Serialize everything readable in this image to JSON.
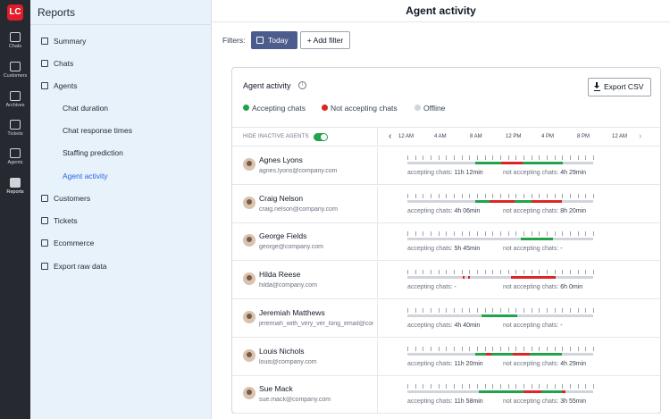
{
  "rail": {
    "logo": "LC",
    "items": [
      {
        "label": "Chats",
        "icon": "chat-icon"
      },
      {
        "label": "Customers",
        "icon": "customers-icon"
      },
      {
        "label": "Archives",
        "icon": "archives-icon"
      },
      {
        "label": "Tickets",
        "icon": "tickets-icon"
      },
      {
        "label": "Agents",
        "icon": "agents-icon"
      },
      {
        "label": "Reports",
        "icon": "reports-icon"
      }
    ]
  },
  "sidebar": {
    "title": "Reports",
    "items": [
      {
        "label": "Summary",
        "icon": "calendar-icon"
      },
      {
        "label": "Chats",
        "icon": "chat-icon"
      },
      {
        "label": "Agents",
        "icon": "agents-icon"
      },
      {
        "label": "Chat duration"
      },
      {
        "label": "Chat response times"
      },
      {
        "label": "Staffing prediction"
      },
      {
        "label": "Agent activity"
      },
      {
        "label": "Customers",
        "icon": "customers-icon"
      },
      {
        "label": "Tickets",
        "icon": "tickets-icon"
      },
      {
        "label": "Ecommerce",
        "icon": "cart-icon"
      },
      {
        "label": "Export raw data",
        "icon": "file-icon"
      }
    ]
  },
  "main": {
    "title": "Agent activity",
    "filters_label": "Filters:",
    "today_label": "Today",
    "add_filter_label": "+ Add filter"
  },
  "card": {
    "title": "Agent activity",
    "info": "i",
    "export_label": "Export CSV",
    "legend": [
      {
        "label": "Accepting chats",
        "color": "#22a34b"
      },
      {
        "label": "Not accepting chats",
        "color": "#dc2626"
      },
      {
        "label": "Offline",
        "color": "#d1d5db"
      }
    ],
    "hide_inactive_label": "HIDE INACTIVE AGENTS",
    "prev_arrow": "‹",
    "next_arrow": "›",
    "time_labels": [
      "12 AM",
      "4 AM",
      "8 AM",
      "12 PM",
      "4 PM",
      "8 PM",
      "12 AM"
    ],
    "accepting_prefix": "accepting chats: ",
    "not_accepting_prefix": "not accepting chats: "
  },
  "agents": [
    {
      "name": "Agnes Lyons",
      "email": "agnes.lyons@company.com",
      "accepting": "11h 12min",
      "not_accepting": "4h 29min",
      "segments": [
        [
          8.8,
          12.1,
          "a"
        ],
        [
          12.1,
          14.9,
          "n"
        ],
        [
          14.9,
          20.1,
          "a"
        ]
      ]
    },
    {
      "name": "Craig Nelson",
      "email": "craig.nelson@company.com",
      "accepting": "4h 06min",
      "not_accepting": "8h 20min",
      "segments": [
        [
          8.8,
          10.6,
          "a"
        ],
        [
          10.6,
          13.9,
          "n"
        ],
        [
          13.9,
          16.0,
          "a"
        ],
        [
          16.0,
          20.0,
          "n"
        ]
      ]
    },
    {
      "name": "George Fields",
      "email": "george@company.com",
      "accepting": "5h 45min",
      "not_accepting": "-",
      "segments": [
        [
          14.6,
          18.8,
          "a"
        ]
      ]
    },
    {
      "name": "Hilda Reese",
      "email": "hilda@company.com",
      "accepting": "-",
      "not_accepting": "6h 0min",
      "segments": [
        [
          7.1,
          7.4,
          "n"
        ],
        [
          7.8,
          8.1,
          "n"
        ],
        [
          13.4,
          19.1,
          "n"
        ]
      ]
    },
    {
      "name": "Jeremiah Matthews",
      "email": "jeremiah_with_very_ver_long_email@company.com",
      "accepting": "4h 40min",
      "not_accepting": "-",
      "segments": [
        [
          9.6,
          14.2,
          "a"
        ]
      ]
    },
    {
      "name": "Louis Nichols",
      "email": "louis@company.com",
      "accepting": "11h 20min",
      "not_accepting": "4h 29min",
      "segments": [
        [
          8.8,
          10.2,
          "a"
        ],
        [
          10.2,
          10.9,
          "n"
        ],
        [
          10.9,
          13.6,
          "a"
        ],
        [
          13.6,
          15.8,
          "n"
        ],
        [
          15.8,
          20.0,
          "a"
        ]
      ]
    },
    {
      "name": "Sue Mack",
      "email": "sue.mack@company.com",
      "accepting": "11h 58min",
      "not_accepting": "3h 55min",
      "segments": [
        [
          9.2,
          15.0,
          "a"
        ],
        [
          15.0,
          17.3,
          "n"
        ],
        [
          17.3,
          20.0,
          "a"
        ],
        [
          20.0,
          20.4,
          "n"
        ]
      ]
    }
  ]
}
